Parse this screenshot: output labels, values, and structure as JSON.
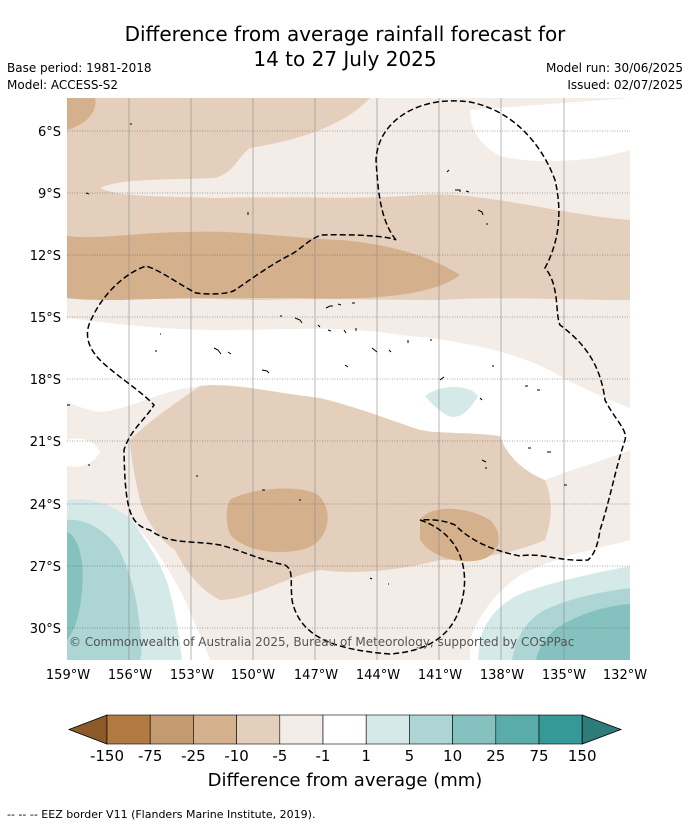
{
  "title": {
    "line1": "Difference from average rainfall forecast for",
    "line2": "14 to 27 July 2025"
  },
  "meta": {
    "base_period": "Base period: 1981-2018",
    "model": "Model: ACCESS-S2",
    "model_run": "Model run: 30/06/2025",
    "issued": "Issued: 02/07/2025"
  },
  "axes": {
    "lat_labels": [
      "6°S",
      "9°S",
      "12°S",
      "15°S",
      "18°S",
      "21°S",
      "24°S",
      "27°S",
      "30°S"
    ],
    "lon_labels": [
      "159°W",
      "156°W",
      "153°W",
      "150°W",
      "147°W",
      "144°W",
      "141°W",
      "138°W",
      "135°W",
      "132°W"
    ]
  },
  "copyright": "© Commonwealth of Australia 2025, Bureau of Meteorology, supported by COSPPac",
  "colorbar": {
    "labels": [
      "-150",
      "-75",
      "-25",
      "-10",
      "-5",
      "-1",
      "1",
      "5",
      "10",
      "25",
      "75",
      "150"
    ],
    "colors": [
      "#8c5a28",
      "#b07a42",
      "#c49a70",
      "#d4b08c",
      "#e4cfbd",
      "#f4ece6",
      "#ffffff",
      "#d4e9e8",
      "#acd5d4",
      "#84c1bf",
      "#5aacaa",
      "#35999a",
      "#2e7c7a"
    ],
    "title": "Difference from average (mm)"
  },
  "footnote": "-- -- -- EEZ border V11 (Flanders Marine Institute, 2019)."
}
